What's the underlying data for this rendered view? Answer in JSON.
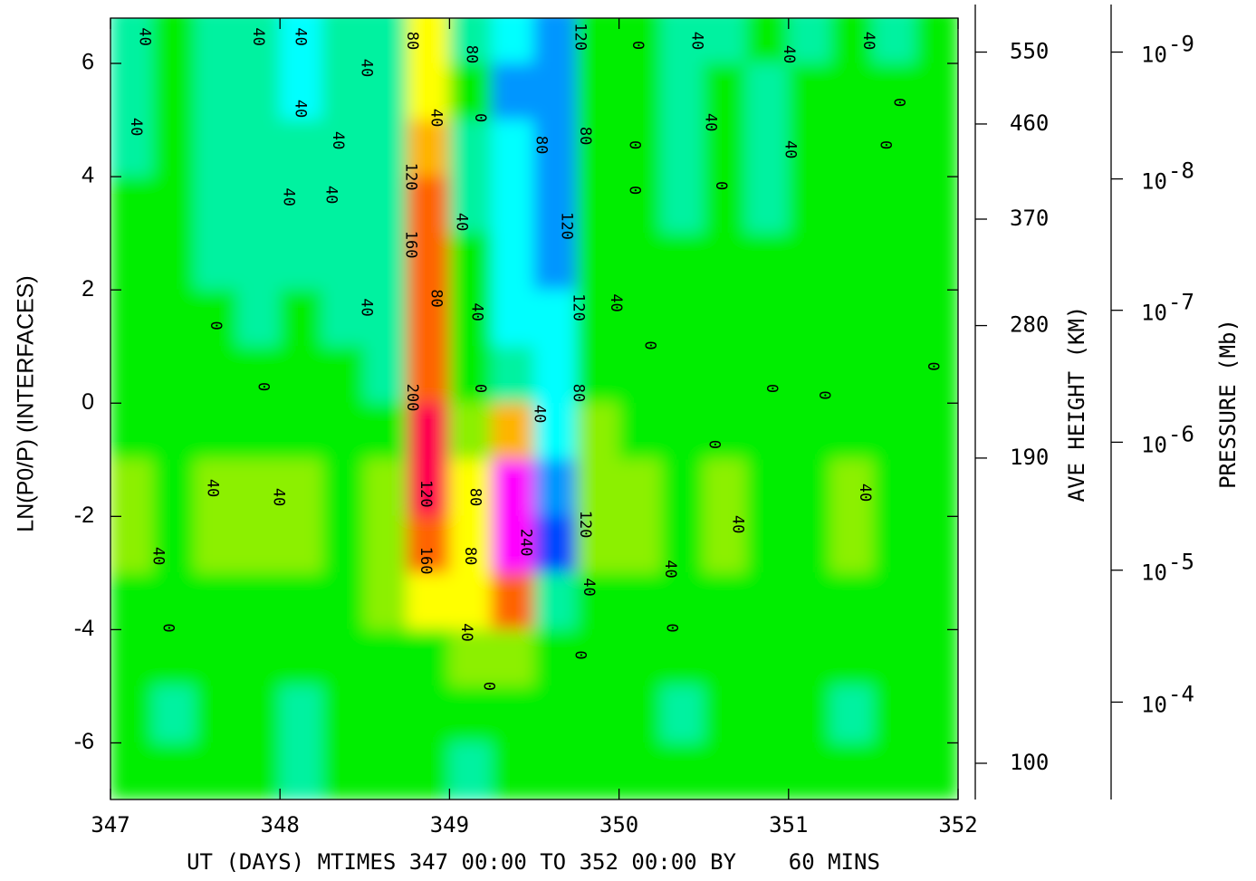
{
  "chart_data": {
    "type": "contour",
    "xlabel": "UT (DAYS) MTIMES 347 00:00 TO 352 00:00 BY    60 MINS",
    "ylabel": "LN(P0/P) (INTERFACES)",
    "xlim": [
      347,
      352
    ],
    "xticks": [
      347,
      348,
      349,
      350,
      351,
      352
    ],
    "ylim": [
      -7,
      6.8
    ],
    "yticks": [
      -6,
      -4,
      -2,
      0,
      2,
      4,
      6
    ],
    "cell_width": 0.25,
    "cell_height": 1,
    "x": [
      347.125,
      347.375,
      347.625,
      347.875,
      348.125,
      348.375,
      348.625,
      348.875,
      349.125,
      349.375,
      349.625,
      349.875,
      350.125,
      350.375,
      350.625,
      350.875,
      351.125,
      351.375,
      351.625,
      351.875
    ],
    "y": [
      6.5,
      5.5,
      4.5,
      3.5,
      2.5,
      1.5,
      0.5,
      -0.5,
      -1.5,
      -2.5,
      -3.5,
      -4.5,
      -5.5,
      -6.5
    ],
    "z": [
      [
        -20,
        10,
        -20,
        -20,
        -50,
        -30,
        -40,
        90,
        -20,
        -60,
        -90,
        10,
        10,
        -20,
        -10,
        10,
        -10,
        10,
        -20,
        10
      ],
      [
        -20,
        10,
        -20,
        -20,
        -50,
        -20,
        -40,
        100,
        10,
        -90,
        -110,
        10,
        10,
        -20,
        10,
        -10,
        10,
        10,
        10,
        10
      ],
      [
        -10,
        10,
        -20,
        -20,
        -20,
        -20,
        -40,
        140,
        -20,
        -70,
        -110,
        10,
        10,
        -20,
        10,
        -10,
        10,
        10,
        10,
        10
      ],
      [
        10,
        10,
        -20,
        -20,
        -20,
        -20,
        -40,
        160,
        -20,
        -60,
        -120,
        10,
        10,
        -20,
        10,
        -10,
        10,
        10,
        10,
        10
      ],
      [
        10,
        10,
        -10,
        -20,
        -10,
        -20,
        -40,
        190,
        20,
        -50,
        -110,
        10,
        10,
        10,
        10,
        10,
        10,
        10,
        10,
        10
      ],
      [
        10,
        10,
        10,
        -10,
        10,
        -10,
        -40,
        190,
        20,
        -50,
        -80,
        10,
        10,
        10,
        10,
        10,
        10,
        10,
        10,
        10
      ],
      [
        15,
        15,
        10,
        10,
        10,
        10,
        -10,
        180,
        10,
        -20,
        -60,
        30,
        10,
        10,
        10,
        10,
        10,
        10,
        10,
        10
      ],
      [
        25,
        25,
        20,
        20,
        20,
        20,
        20,
        210,
        60,
        120,
        -60,
        50,
        20,
        15,
        20,
        15,
        15,
        20,
        20,
        15
      ],
      [
        50,
        30,
        45,
        50,
        50,
        30,
        50,
        210,
        90,
        250,
        -110,
        40,
        45,
        30,
        40,
        20,
        20,
        50,
        35,
        30
      ],
      [
        45,
        25,
        45,
        40,
        40,
        25,
        50,
        170,
        90,
        250,
        -130,
        40,
        40,
        30,
        45,
        20,
        20,
        50,
        30,
        30
      ],
      [
        20,
        10,
        20,
        15,
        15,
        15,
        40,
        90,
        80,
        190,
        -40,
        30,
        20,
        20,
        20,
        15,
        15,
        25,
        15,
        15
      ],
      [
        10,
        5,
        10,
        10,
        10,
        10,
        20,
        30,
        40,
        60,
        20,
        10,
        10,
        10,
        10,
        10,
        10,
        10,
        10,
        10
      ],
      [
        10,
        -10,
        10,
        10,
        -10,
        10,
        10,
        10,
        10,
        10,
        10,
        10,
        10,
        -10,
        10,
        10,
        10,
        -10,
        10,
        10
      ],
      [
        10,
        10,
        10,
        10,
        -10,
        10,
        10,
        10,
        -10,
        10,
        10,
        10,
        10,
        10,
        10,
        10,
        10,
        10,
        10,
        10
      ]
    ],
    "levels": [
      -120,
      -80,
      -40,
      0,
      40,
      80,
      120,
      160,
      200,
      240
    ],
    "level_colors": [
      "#0046ff",
      "#0096ff",
      "#00ffff",
      "#00f2a0",
      "#00ee00",
      "#8cf000",
      "#ffff00",
      "#ffb400",
      "#ff6400",
      "#ff0050",
      "#ff00ff"
    ],
    "contour_labels": [
      {
        "x": 347.2,
        "y": 6.47,
        "label": "40"
      },
      {
        "x": 347.15,
        "y": 4.88,
        "label": "40"
      },
      {
        "x": 347.87,
        "y": 6.47,
        "label": "40"
      },
      {
        "x": 348.12,
        "y": 6.47,
        "label": "40"
      },
      {
        "x": 348.12,
        "y": 5.2,
        "label": "40"
      },
      {
        "x": 348.05,
        "y": 3.64,
        "label": "40"
      },
      {
        "x": 348.51,
        "y": 5.92,
        "label": "40"
      },
      {
        "x": 348.34,
        "y": 4.64,
        "label": "40"
      },
      {
        "x": 348.3,
        "y": 3.68,
        "label": "40"
      },
      {
        "x": 348.51,
        "y": 1.69,
        "label": "40"
      },
      {
        "x": 348.78,
        "y": 6.4,
        "label": "80"
      },
      {
        "x": 348.77,
        "y": 4.0,
        "label": "120"
      },
      {
        "x": 348.77,
        "y": 2.8,
        "label": "160"
      },
      {
        "x": 348.78,
        "y": 0.1,
        "label": "200"
      },
      {
        "x": 348.86,
        "y": -1.6,
        "label": "120"
      },
      {
        "x": 348.86,
        "y": -2.78,
        "label": "160"
      },
      {
        "x": 348.92,
        "y": 1.85,
        "label": "80"
      },
      {
        "x": 348.92,
        "y": 5.04,
        "label": "40"
      },
      {
        "x": 349.13,
        "y": 6.16,
        "label": "80"
      },
      {
        "x": 349.18,
        "y": 5.04,
        "label": "0"
      },
      {
        "x": 349.07,
        "y": 3.2,
        "label": "40"
      },
      {
        "x": 349.16,
        "y": 1.61,
        "label": "40"
      },
      {
        "x": 349.18,
        "y": 0.26,
        "label": "0"
      },
      {
        "x": 349.15,
        "y": -1.66,
        "label": "80"
      },
      {
        "x": 349.12,
        "y": -2.7,
        "label": "80"
      },
      {
        "x": 349.1,
        "y": -4.05,
        "label": "40"
      },
      {
        "x": 349.23,
        "y": -5.0,
        "label": "0"
      },
      {
        "x": 349.45,
        "y": -2.46,
        "label": "240"
      },
      {
        "x": 349.53,
        "y": -0.19,
        "label": "40"
      },
      {
        "x": 349.54,
        "y": 4.56,
        "label": "80"
      },
      {
        "x": 349.8,
        "y": 4.72,
        "label": "80"
      },
      {
        "x": 349.77,
        "y": 6.47,
        "label": "120"
      },
      {
        "x": 349.69,
        "y": 3.13,
        "label": "120"
      },
      {
        "x": 349.76,
        "y": 1.69,
        "label": "120"
      },
      {
        "x": 349.76,
        "y": 0.18,
        "label": "80"
      },
      {
        "x": 349.8,
        "y": -2.14,
        "label": "120"
      },
      {
        "x": 349.82,
        "y": -3.25,
        "label": "40"
      },
      {
        "x": 349.77,
        "y": -4.45,
        "label": "0"
      },
      {
        "x": 349.98,
        "y": 1.77,
        "label": "40"
      },
      {
        "x": 350.11,
        "y": 6.32,
        "label": "0"
      },
      {
        "x": 350.09,
        "y": 4.56,
        "label": "0"
      },
      {
        "x": 350.09,
        "y": 3.76,
        "label": "0"
      },
      {
        "x": 350.18,
        "y": 1.02,
        "label": "0"
      },
      {
        "x": 350.3,
        "y": -2.93,
        "label": "40"
      },
      {
        "x": 350.31,
        "y": -3.97,
        "label": "0"
      },
      {
        "x": 350.46,
        "y": 6.4,
        "label": "40"
      },
      {
        "x": 350.54,
        "y": 4.96,
        "label": "40"
      },
      {
        "x": 350.6,
        "y": 3.84,
        "label": "0"
      },
      {
        "x": 350.56,
        "y": -0.73,
        "label": "0"
      },
      {
        "x": 350.7,
        "y": -2.14,
        "label": "40"
      },
      {
        "x": 350.9,
        "y": 0.26,
        "label": "0"
      },
      {
        "x": 351.0,
        "y": 6.16,
        "label": "40"
      },
      {
        "x": 351.01,
        "y": 4.48,
        "label": "40"
      },
      {
        "x": 351.21,
        "y": 0.14,
        "label": "0"
      },
      {
        "x": 351.47,
        "y": 6.4,
        "label": "40"
      },
      {
        "x": 351.45,
        "y": -1.58,
        "label": "40"
      },
      {
        "x": 351.57,
        "y": 4.56,
        "label": "0"
      },
      {
        "x": 351.65,
        "y": 5.31,
        "label": "0"
      },
      {
        "x": 351.85,
        "y": 0.65,
        "label": "0"
      },
      {
        "x": 347.62,
        "y": 1.37,
        "label": "0"
      },
      {
        "x": 347.9,
        "y": 0.29,
        "label": "0"
      },
      {
        "x": 347.6,
        "y": -1.5,
        "label": "40"
      },
      {
        "x": 347.99,
        "y": -1.66,
        "label": "40"
      },
      {
        "x": 347.28,
        "y": -2.7,
        "label": "40"
      },
      {
        "x": 347.34,
        "y": -3.97,
        "label": "0"
      }
    ],
    "height_axis": {
      "label": "AVE HEIGHT (KM)",
      "ticks": [
        {
          "height": 550,
          "lnp": 6.2
        },
        {
          "height": 460,
          "lnp": 4.93
        },
        {
          "height": 370,
          "lnp": 3.25
        },
        {
          "height": 280,
          "lnp": 1.37
        },
        {
          "height": 190,
          "lnp": -0.97
        },
        {
          "height": 100,
          "lnp": -6.36
        }
      ]
    },
    "pressure_axis": {
      "label": "PRESSURE (Mb)",
      "base": 10,
      "ticks": [
        {
          "exponent": -9,
          "lnp": 6.2
        },
        {
          "exponent": -8,
          "lnp": 3.96
        },
        {
          "exponent": -7,
          "lnp": 1.64
        },
        {
          "exponent": -6,
          "lnp": -0.69
        },
        {
          "exponent": -5,
          "lnp": -2.95
        },
        {
          "exponent": -4,
          "lnp": -5.28
        }
      ]
    }
  }
}
